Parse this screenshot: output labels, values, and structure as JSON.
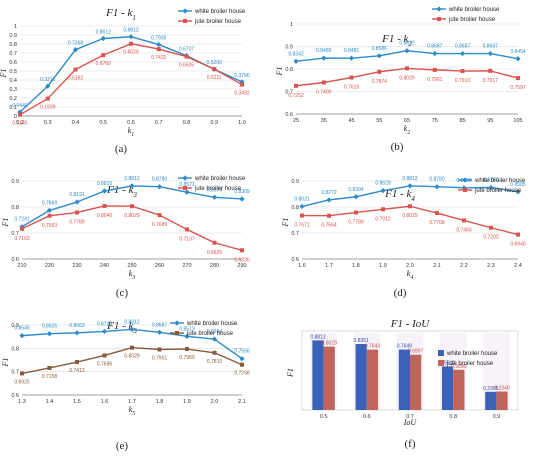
{
  "chart_data": [
    {
      "type": "line",
      "title": "F1 - k1",
      "xlabel": "k1",
      "ylabel": "F1",
      "panel_label": "(a)",
      "x": [
        0.2,
        0.3,
        0.4,
        0.5,
        0.6,
        0.7,
        0.8,
        0.9,
        1.0
      ],
      "xlim": [
        0.2,
        1.0
      ],
      "xticks": [
        "0.2",
        "0.3",
        "0.4",
        "0.5",
        "0.6",
        "0.7",
        "0.8",
        "0.9",
        "1.0"
      ],
      "ylim": [
        0,
        1
      ],
      "yticks": [
        "0",
        "0.1",
        "0.2",
        "0.3",
        "0.4",
        "0.5",
        "0.6",
        "0.7",
        "0.8",
        "0.9",
        "1"
      ],
      "series": [
        {
          "name": "white broiler house",
          "color": "#2e8bc9",
          "marker": "diamond",
          "values": [
            0.044,
            0.3316,
            0.7368,
            0.8612,
            0.8812,
            0.7935,
            0.6707,
            0.52,
            0.3796
          ],
          "labels": [
            "0.0440",
            "0.3316",
            "0.7368",
            "0.8612",
            "0.8812",
            "0.7935",
            "0.6707",
            "0.5200",
            "0.3796"
          ]
        },
        {
          "name": "jute broiler house",
          "color": "#d9534f",
          "marker": "square",
          "values": [
            0.0145,
            0.1939,
            0.5162,
            0.676,
            0.8029,
            0.7432,
            0.6605,
            0.5211,
            0.3492
          ],
          "labels": [
            "0.0145",
            "0.1939",
            "0.5162",
            "0.6760",
            "0.8029",
            "0.7432",
            "0.6605",
            "0.5211",
            "0.3492"
          ]
        }
      ],
      "legend": "top-right"
    },
    {
      "type": "line",
      "title": "F1 - k2",
      "xlabel": "k2",
      "ylabel": "F1",
      "panel_label": "(b)",
      "x": [
        25,
        35,
        45,
        55,
        65,
        75,
        85,
        95,
        105
      ],
      "xlim": [
        25,
        105
      ],
      "xticks": [
        "25",
        "35",
        "45",
        "55",
        "65",
        "75",
        "85",
        "95",
        "105"
      ],
      "ylim": [
        0.6,
        1
      ],
      "yticks": [
        "0.6",
        "0.7",
        "0.8",
        "0.9",
        "1"
      ],
      "series": [
        {
          "name": "white broiler house",
          "color": "#2e8bc9",
          "marker": "diamond",
          "values": [
            0.8342,
            0.8485,
            0.8481,
            0.8586,
            0.8812,
            0.8687,
            0.8687,
            0.8687,
            0.8454
          ],
          "labels": [
            "0.8342",
            "0.8485",
            "0.8481",
            "0.8586",
            "0.8812",
            "0.8687",
            "0.8687",
            "0.8687",
            "0.8454"
          ]
        },
        {
          "name": "jute broiler house",
          "color": "#d9534f",
          "marker": "square",
          "values": [
            0.7252,
            0.74,
            0.7619,
            0.7874,
            0.8029,
            0.7961,
            0.791,
            0.7917,
            0.7597
          ],
          "labels": [
            "0.7252",
            "0.7400",
            "0.7619",
            "0.7874",
            "0.8029",
            "0.7961",
            "0.7910",
            "0.7917",
            "0.7597"
          ]
        }
      ],
      "legend": "top-right"
    },
    {
      "type": "line",
      "title": "F1 - k3",
      "xlabel": "k3",
      "ylabel": "F1",
      "panel_label": "(c)",
      "x": [
        210,
        220,
        230,
        240,
        250,
        260,
        270,
        280,
        290
      ],
      "xlim": [
        210,
        290
      ],
      "xticks": [
        "210",
        "220",
        "230",
        "240",
        "250",
        "260",
        "270",
        "280",
        "290"
      ],
      "ylim": [
        0.6,
        0.9
      ],
      "yticks": [
        "0.6",
        "0.7",
        "0.8",
        "0.9"
      ],
      "series": [
        {
          "name": "white broiler house",
          "color": "#2e8bc9",
          "marker": "diamond",
          "values": [
            0.7241,
            0.7869,
            0.8191,
            0.8615,
            0.8812,
            0.878,
            0.8571,
            0.8374,
            0.8309
          ],
          "labels": [
            "0.7241",
            "0.7869",
            "0.8191",
            "0.8615",
            "0.8812",
            "0.8780",
            "0.8571",
            "0.8374",
            "0.8309"
          ]
        },
        {
          "name": "jute broiler house",
          "color": "#d9534f",
          "marker": "square",
          "values": [
            0.7163,
            0.7663,
            0.7789,
            0.804,
            0.8029,
            0.7689,
            0.7137,
            0.6625,
            0.6335
          ],
          "labels": [
            "0.7163",
            "0.7663",
            "0.7789",
            "0.8040",
            "0.8029",
            "0.7689",
            "0.7137",
            "0.6625",
            "0.6335"
          ]
        }
      ],
      "legend": "top-right"
    },
    {
      "type": "line",
      "title": "F1 - k4",
      "xlabel": "k4",
      "ylabel": "F1",
      "panel_label": "(d)",
      "x": [
        1.6,
        1.7,
        1.8,
        1.9,
        2.0,
        2.1,
        2.2,
        2.3,
        2.4
      ],
      "xlim": [
        1.6,
        2.4
      ],
      "xticks": [
        "1.6",
        "1.7",
        "1.8",
        "1.9",
        "2.0",
        "2.1",
        "2.2",
        "2.3",
        "2.4"
      ],
      "ylim": [
        0.6,
        0.9
      ],
      "yticks": [
        "0.6",
        "0.7",
        "0.8",
        "0.9"
      ],
      "series": [
        {
          "name": "white broiler house",
          "color": "#2e8bc9",
          "marker": "diamond",
          "values": [
            0.8021,
            0.8272,
            0.8394,
            0.8629,
            0.8812,
            0.878,
            0.8738,
            0.875,
            0.8585
          ],
          "labels": [
            "0.8021",
            "0.8272",
            "0.8394",
            "0.8629",
            "0.8812",
            "0.8780",
            "0.8738",
            "0.8750",
            "0.8585"
          ]
        },
        {
          "name": "jute broiler house",
          "color": "#d9534f",
          "marker": "square",
          "values": [
            0.7671,
            0.7664,
            0.7789,
            0.7912,
            0.8029,
            0.7768,
            0.7483,
            0.7202,
            0.694
          ],
          "labels": [
            "0.7671",
            "0.7664",
            "0.7789",
            "0.7912",
            "0.8029",
            "0.7768",
            "0.7483",
            "0.7202",
            "0.6940"
          ]
        }
      ],
      "legend": "top-right"
    },
    {
      "type": "line",
      "title": "F1 - k5",
      "xlabel": "k5",
      "ylabel": "F1",
      "panel_label": "(e)",
      "x": [
        1.3,
        1.4,
        1.5,
        1.6,
        1.7,
        1.8,
        1.9,
        2.0,
        2.1
      ],
      "xlim": [
        1.3,
        2.1
      ],
      "xticks": [
        "1.3",
        "1.4",
        "1.5",
        "1.6",
        "1.7",
        "1.8",
        "1.9",
        "2.0",
        "2.1"
      ],
      "ylim": [
        0.6,
        0.9
      ],
      "yticks": [
        "0.6",
        "0.7",
        "0.8",
        "0.9"
      ],
      "series": [
        {
          "name": "white broiler house",
          "color": "#2e8bc9",
          "marker": "diamond",
          "values": [
            0.8545,
            0.8626,
            0.8663,
            0.8725,
            0.8812,
            0.8687,
            0.8513,
            0.8394,
            0.7556
          ],
          "labels": [
            "0.8545",
            "0.8626",
            "0.8663",
            "0.8725",
            "0.8812",
            "0.8687",
            "0.8513",
            "0.8394",
            "0.7556"
          ]
        },
        {
          "name": "jute broiler house",
          "color": "#8b5a3c",
          "marker": "square",
          "values": [
            0.6925,
            0.7158,
            0.7412,
            0.7696,
            0.8029,
            0.7951,
            0.7969,
            0.781,
            0.7298
          ],
          "labels": [
            "0.6925",
            "0.7158",
            "0.7412",
            "0.7696",
            "0.8029",
            "0.7951",
            "0.7969",
            "0.7810",
            "0.7298"
          ]
        }
      ],
      "legend": "top-right"
    },
    {
      "type": "bar",
      "title": "F1 - IoU",
      "xlabel": "IoU",
      "ylabel": "F1",
      "panel_label": "(f)",
      "categories": [
        "0.5",
        "0.6",
        "0.7",
        "0.8",
        "0.9"
      ],
      "ylim": [
        0,
        1
      ],
      "series": [
        {
          "name": "white broiler house",
          "color": "#3a62b8",
          "label_color": "#2a4fa8",
          "values": [
            0.8812,
            0.8351,
            0.7649,
            0.5513,
            0.2305
          ],
          "labels": [
            "0.8812",
            "0.8351",
            "0.7649",
            "0.5513",
            "0.2305"
          ]
        },
        {
          "name": "jute broiler house",
          "color": "#c0645c",
          "label_color": "#c0504d",
          "values": [
            0.8029,
            0.7643,
            0.6997,
            0.509,
            0.234
          ],
          "labels": [
            "0.8029",
            "0.7643",
            "0.6997",
            "0.5090",
            "0.2340"
          ]
        }
      ],
      "legend": "top-right"
    }
  ]
}
